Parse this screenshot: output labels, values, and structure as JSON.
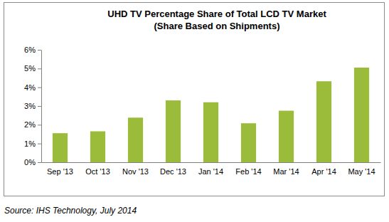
{
  "chart_data": {
    "type": "bar",
    "title": "UHD TV Percentage Share of Total LCD TV Market",
    "subtitle": "(Share Based on Shipments)",
    "source": "Source: IHS Technology, July 2014",
    "categories": [
      "Sep '13",
      "Oct '13",
      "Nov '13",
      "Dec '13",
      "Jan '14",
      "Feb '14",
      "Mar '14",
      "Apr '14",
      "May '14"
    ],
    "values": [
      1.55,
      1.65,
      2.38,
      3.3,
      3.2,
      2.08,
      2.75,
      4.32,
      5.05
    ],
    "color": "#9bbb3b",
    "ylim": [
      0,
      6
    ],
    "yticks": [
      {
        "value": 0,
        "label": "0%"
      },
      {
        "value": 1,
        "label": "1%"
      },
      {
        "value": 2,
        "label": "2%"
      },
      {
        "value": 3,
        "label": "3%"
      },
      {
        "value": 4,
        "label": "4%"
      },
      {
        "value": 5,
        "label": "5%"
      },
      {
        "value": 6,
        "label": "6%"
      }
    ],
    "grid": false
  }
}
